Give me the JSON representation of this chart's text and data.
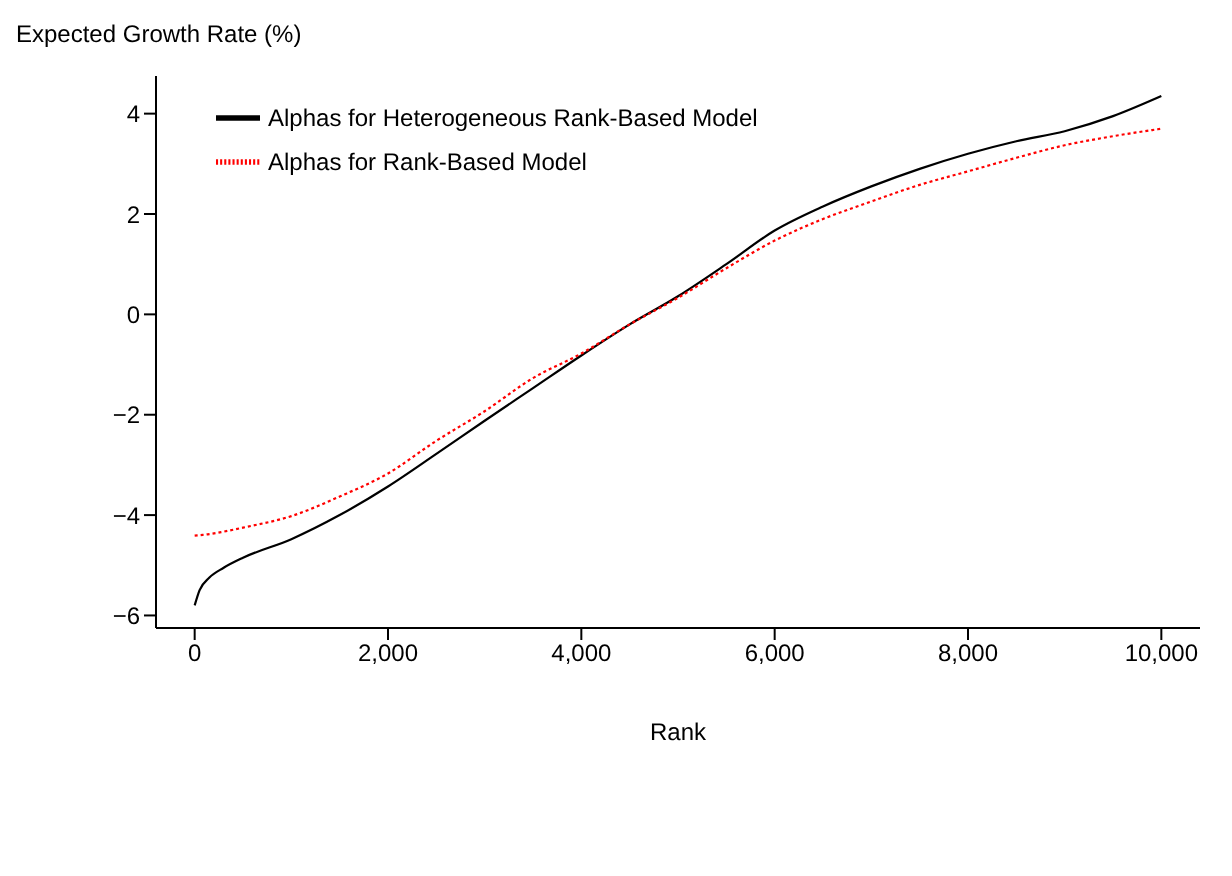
{
  "chart_data": {
    "type": "line",
    "ylabel": "Expected Growth Rate (%)",
    "xlabel": "Rank",
    "x": [
      0,
      50,
      150,
      300,
      500,
      1000,
      1500,
      2000,
      2500,
      3000,
      3500,
      4000,
      4500,
      5000,
      5500,
      6000,
      6500,
      7000,
      7500,
      8000,
      8500,
      9000,
      9500,
      10000
    ],
    "series": [
      {
        "name": "Alphas for Heterogeneous Rank-Based Model",
        "color": "#000000",
        "line_style": "solid",
        "values": [
          -5.8,
          -5.5,
          -5.25,
          -5.05,
          -4.85,
          -4.48,
          -4.0,
          -3.43,
          -2.78,
          -2.12,
          -1.47,
          -0.82,
          -0.2,
          0.36,
          1.0,
          1.67,
          2.15,
          2.55,
          2.9,
          3.2,
          3.45,
          3.65,
          3.95,
          4.35
        ]
      },
      {
        "name": "Alphas for Rank-Based Model",
        "color": "#ff0000",
        "line_style": "dotted",
        "values": [
          -4.41,
          -4.4,
          -4.38,
          -4.33,
          -4.25,
          -4.02,
          -3.63,
          -3.17,
          -2.52,
          -1.93,
          -1.27,
          -0.78,
          -0.2,
          0.33,
          0.92,
          1.47,
          1.9,
          2.25,
          2.58,
          2.85,
          3.12,
          3.37,
          3.55,
          3.7
        ]
      }
    ],
    "xlim": [
      -400,
      10400
    ],
    "xticks": [
      0,
      {
        "value": 2000,
        "label": "2,000"
      },
      {
        "value": 4000,
        "label": "4,000"
      },
      {
        "value": 6000,
        "label": "6,000"
      },
      {
        "value": 8000,
        "label": "8,000"
      },
      {
        "value": 10000,
        "label": "10,000"
      }
    ],
    "ylim": [
      -6.25,
      4.75
    ],
    "yticks": [
      -6,
      -4,
      -2,
      0,
      2,
      4
    ],
    "grid": false,
    "legend": "top left"
  }
}
